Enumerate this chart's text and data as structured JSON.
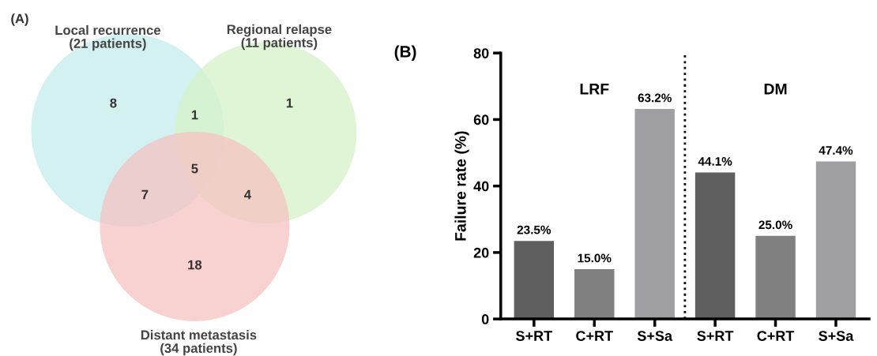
{
  "chart_data": [
    {
      "type": "other",
      "title": "(A)",
      "colors": [
        "#c6eced",
        "#d5f2c8",
        "#f5c2c2"
      ],
      "annotations": [
        "Local recurrence\n(21 patients)",
        "Regional relapse\n(11 patients)",
        "Distant metastasis\n(34 patients)",
        "8",
        "1",
        "1",
        "5",
        "7",
        "4",
        "18"
      ]
    },
    {
      "type": "bar",
      "title": "(B)",
      "ylabel": "Failure rate (%)",
      "categories": [
        "S+RT",
        "C+RT",
        "S+Sa",
        "S+RT",
        "C+RT",
        "S+Sa"
      ],
      "values": [
        23.5,
        15.0,
        63.2,
        44.1,
        25.0,
        47.4
      ],
      "colors": [
        "#5f5f5f",
        "#808080",
        "#a0a0a4",
        "#5f5f5f",
        "#808080",
        "#a0a0a4"
      ],
      "value_labels": [
        "23.5%",
        "15.0%",
        "63.2%",
        "44.1%",
        "25.0%",
        "47.4%"
      ],
      "annotations": [
        "LRF",
        "DM"
      ],
      "ylim": [
        0,
        80
      ],
      "yticks": [
        0,
        20,
        40,
        60,
        80
      ],
      "grid": false,
      "legend": false
    }
  ]
}
